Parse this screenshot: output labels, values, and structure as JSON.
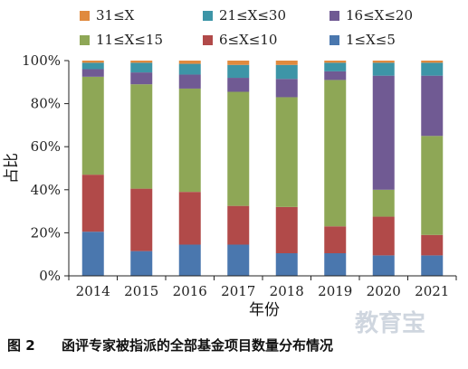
{
  "chart_data": {
    "type": "bar",
    "stacked": true,
    "categories": [
      "2014",
      "2015",
      "2016",
      "2017",
      "2018",
      "2019",
      "2020",
      "2021"
    ],
    "series": [
      {
        "name": "1≤X≤5",
        "color": "#4a77ae",
        "values": [
          20.5,
          11.5,
          14.5,
          14.5,
          10.5,
          10.5,
          9.5,
          9.5
        ]
      },
      {
        "name": "6≤X≤10",
        "color": "#b14a49",
        "values": [
          26.5,
          29,
          24.5,
          18,
          21.5,
          12.5,
          18,
          9.5
        ]
      },
      {
        "name": "11≤X≤15",
        "color": "#8ea756",
        "values": [
          45.5,
          48.5,
          48,
          53,
          51,
          68,
          12.5,
          46
        ]
      },
      {
        "name": "16≤X≤20",
        "color": "#705a93",
        "values": [
          3.5,
          5.5,
          6.5,
          6.5,
          8.5,
          4,
          53,
          28
        ]
      },
      {
        "name": "21≤X≤30",
        "color": "#3d95a7",
        "values": [
          3,
          4.5,
          5,
          6,
          6.5,
          4,
          6,
          6
        ]
      },
      {
        "name": "31≤X",
        "color": "#e08a3e",
        "values": [
          1,
          1,
          1.5,
          2,
          2,
          1,
          1,
          1
        ]
      }
    ],
    "legend_order": [
      "31≤X",
      "21≤X≤30",
      "16≤X≤20",
      "11≤X≤15",
      "6≤X≤10",
      "1≤X≤5"
    ],
    "legend_position": "top",
    "xlabel": "年份",
    "ylabel": "占比",
    "ylim": [
      0,
      100
    ],
    "yticks": [
      "0%",
      "20%",
      "40%",
      "60%",
      "80%",
      "100%"
    ],
    "grid": false
  },
  "caption": {
    "label": "图 2",
    "text": "函评专家被指派的全部基金项目数量分布情况"
  },
  "watermark": "教育宝"
}
